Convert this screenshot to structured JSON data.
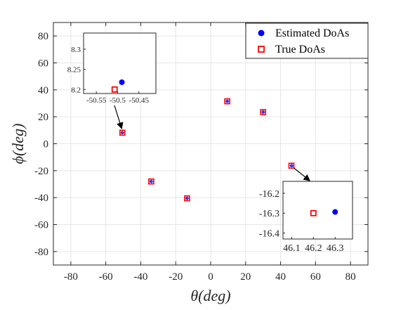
{
  "chart_data": [
    {
      "type": "scatter",
      "xlabel": "θ(deg)",
      "ylabel": "ϕ(deg)",
      "xlim": [
        -90,
        90
      ],
      "ylim": [
        -90,
        90
      ],
      "xticks": [
        -80,
        -60,
        -40,
        -20,
        0,
        20,
        40,
        60,
        80
      ],
      "yticks": [
        80,
        60,
        40,
        20,
        0,
        -20,
        -40,
        -60,
        -80
      ],
      "grid": true,
      "legend": "top-right",
      "series": [
        {
          "name": "Estimated DoAs",
          "marker": "filled-circle",
          "color": "#0000ff",
          "points": [
            {
              "x": -50.5,
              "y": 8.2
            },
            {
              "x": -34,
              "y": -28
            },
            {
              "x": -13.5,
              "y": -40.5
            },
            {
              "x": 9.5,
              "y": 31.5
            },
            {
              "x": 30,
              "y": 23.5
            },
            {
              "x": 46.3,
              "y": -16.3
            }
          ]
        },
        {
          "name": "True DoAs",
          "marker": "open-square",
          "color": "#ff0000",
          "points": [
            {
              "x": -50.5,
              "y": 8.2
            },
            {
              "x": -34,
              "y": -28
            },
            {
              "x": -13.5,
              "y": -40.5
            },
            {
              "x": 9.5,
              "y": 31.5
            },
            {
              "x": 30,
              "y": 23.5
            },
            {
              "x": 46.2,
              "y": -16.3
            }
          ]
        }
      ]
    },
    {
      "type": "scatter",
      "inset": "upper-left zoom",
      "xlim": [
        -50.58,
        -50.41
      ],
      "ylim": [
        8.19,
        8.34
      ],
      "xticks": [
        "-50.55",
        "-50.5",
        "-50.45"
      ],
      "yticks": [
        "8.3",
        "8.25",
        "8.2"
      ],
      "series": [
        {
          "name": "Estimated DoAs",
          "points": [
            {
              "x": -50.49,
              "y": 8.218
            }
          ]
        },
        {
          "name": "True DoAs",
          "points": [
            {
              "x": -50.507,
              "y": 8.2
            }
          ]
        }
      ]
    },
    {
      "type": "scatter",
      "inset": "lower-right zoom",
      "xlim": [
        46.06,
        46.38
      ],
      "ylim": [
        -16.43,
        -16.14
      ],
      "xticks": [
        "46.1",
        "46.2",
        "46.3"
      ],
      "yticks": [
        "-16.2",
        "-16.3",
        "-16.4"
      ],
      "series": [
        {
          "name": "Estimated DoAs",
          "points": [
            {
              "x": 46.3,
              "y": -16.294
            }
          ]
        },
        {
          "name": "True DoAs",
          "points": [
            {
              "x": 46.2,
              "y": -16.3
            }
          ]
        }
      ]
    }
  ]
}
